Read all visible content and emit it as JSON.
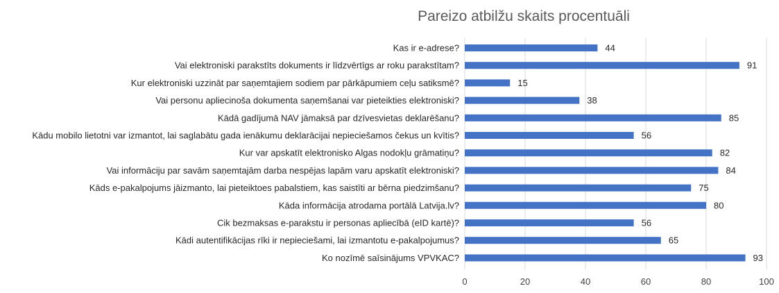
{
  "chart_data": {
    "type": "bar",
    "orientation": "horizontal",
    "title": "Pareizo atbilžu skaits procentuāli",
    "xlabel": "",
    "ylabel": "",
    "xlim": [
      0,
      100
    ],
    "x_ticks": [
      0,
      20,
      40,
      60,
      80,
      100
    ],
    "grid": true,
    "legend": "none",
    "bar_color": "#4472C4",
    "categories": [
      "Kas ir e-adrese?",
      "Vai elektroniski parakstīts dokuments ir līdzvērtīgs ar roku parakstītam?",
      "Kur elektroniski uzzināt par saņemtajiem sodiem par pārkāpumiem ceļu satiksmē?",
      "Vai personu apliecinoša dokumenta saņemšanai var pieteikties elektroniski?",
      "Kādā gadījumā NAV jāmaksā par dzīvesvietas deklarēšanu?",
      "Kādu mobilo lietotni var izmantot, lai saglabātu gada ienākumu deklarācijai nepieciešamos čekus un kvītis?",
      "Kur var apskatīt elektronisko Algas nodokļu grāmatiņu?",
      "Vai informāciju par savām saņemtajām darba nespējas lapām varu apskatīt elektroniski?",
      "Kāds e-pakalpojums jāizmanto, lai pieteiktoes pabalstiem, kas saistīti ar bērna piedzimšanu?",
      "Kāda informācija atrodama portālā Latvija.lv?",
      "Cik bezmaksas e-parakstu ir personas apliecībā (eID kartē)?",
      "Kādi autentifikācijas rīki ir nepieciešami, lai izmantotu e-pakalpojumus?",
      "Ko nozīmē saīsinājums VPVKAC?"
    ],
    "values": [
      44,
      91,
      15,
      38,
      85,
      56,
      82,
      84,
      75,
      80,
      56,
      65,
      93
    ]
  }
}
